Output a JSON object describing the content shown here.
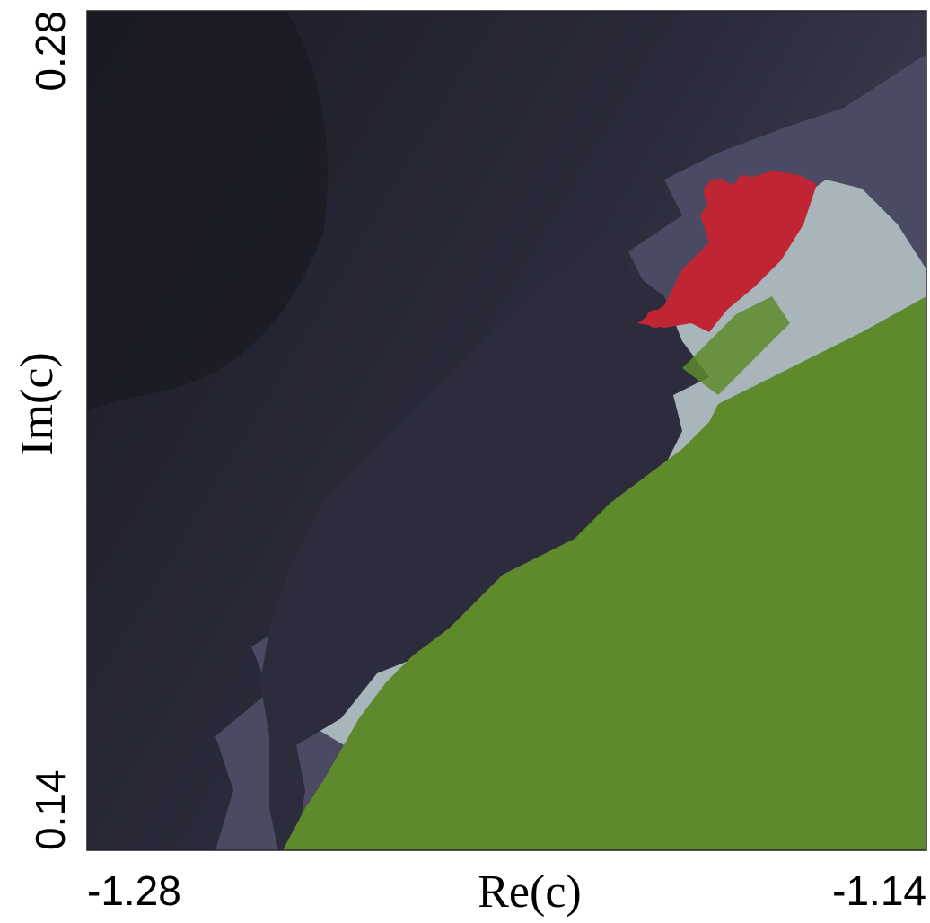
{
  "chart_data": {
    "type": "image",
    "xlabel": "Re(c)",
    "ylabel": "Im(c)",
    "xlim": [
      -1.28,
      -1.14
    ],
    "ylim": [
      0.14,
      0.28
    ],
    "xticks": [
      -1.28,
      -1.14
    ],
    "yticks": [
      0.14,
      0.28
    ]
  }
}
